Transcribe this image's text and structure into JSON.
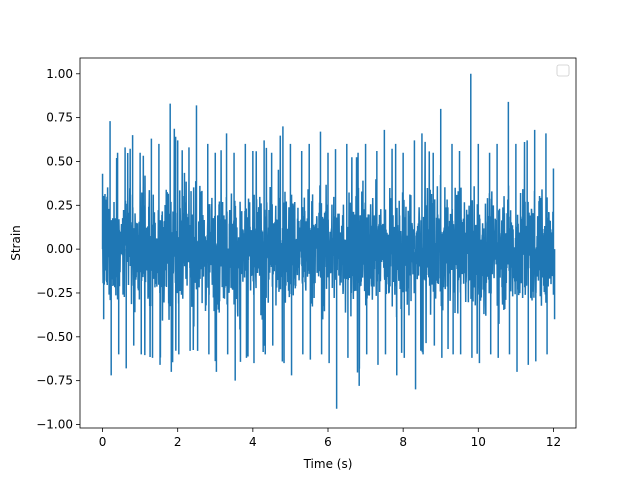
{
  "chart_data": {
    "type": "line",
    "title": "",
    "xlabel": "Time (s)",
    "ylabel": "Strain",
    "xlim": [
      -0.6,
      12.6
    ],
    "ylim": [
      -1.02,
      1.09
    ],
    "xticks": [
      0,
      2,
      4,
      6,
      8,
      10,
      12
    ],
    "xtick_labels": [
      "0",
      "2",
      "4",
      "6",
      "8",
      "10",
      "12"
    ],
    "yticks": [
      -1.0,
      -0.75,
      -0.5,
      -0.25,
      0.0,
      0.25,
      0.5,
      0.75,
      1.0
    ],
    "ytick_labels": [
      "−1.00",
      "−0.75",
      "−0.50",
      "−0.25",
      "0.00",
      "0.25",
      "0.50",
      "0.75",
      "1.00"
    ],
    "grid": false,
    "legend": {
      "placement": "upper-right",
      "entries": []
    },
    "color": "#1f77b4",
    "series": [
      {
        "x_range": [
          0,
          12
        ],
        "description_stats": {
          "mean": 0.0,
          "typical_band": [
            -0.4,
            0.45
          ]
        },
        "envelope": {
          "x": [
            0.0,
            0.2,
            0.4,
            0.6,
            0.8,
            1.0,
            1.3,
            1.5,
            1.8,
            2.0,
            2.3,
            2.5,
            2.8,
            3.0,
            3.3,
            3.5,
            3.8,
            4.0,
            4.3,
            4.5,
            4.8,
            5.0,
            5.3,
            5.5,
            5.8,
            6.0,
            6.2,
            6.5,
            6.8,
            7.0,
            7.3,
            7.5,
            7.8,
            8.0,
            8.3,
            8.5,
            8.8,
            9.0,
            9.3,
            9.5,
            9.8,
            10.0,
            10.3,
            10.5,
            10.8,
            11.0,
            11.3,
            11.5,
            11.8,
            12.0
          ],
          "upper": [
            0.43,
            0.73,
            0.55,
            0.58,
            0.65,
            0.55,
            0.63,
            0.6,
            0.83,
            0.62,
            0.58,
            0.82,
            0.6,
            0.55,
            0.66,
            0.55,
            0.6,
            0.56,
            0.62,
            0.55,
            0.7,
            0.6,
            0.56,
            0.6,
            0.67,
            0.55,
            0.57,
            0.6,
            0.55,
            0.6,
            0.56,
            0.68,
            0.6,
            0.55,
            0.62,
            0.66,
            0.55,
            0.8,
            0.6,
            0.56,
            1.0,
            0.6,
            0.55,
            0.6,
            0.84,
            0.6,
            0.62,
            0.68,
            0.66,
            0.46
          ],
          "lower": [
            -0.4,
            -0.72,
            -0.6,
            -0.68,
            -0.55,
            -0.6,
            -0.62,
            -0.66,
            -0.7,
            -0.6,
            -0.58,
            -0.58,
            -0.6,
            -0.7,
            -0.6,
            -0.75,
            -0.62,
            -0.65,
            -0.6,
            -0.55,
            -0.65,
            -0.72,
            -0.6,
            -0.63,
            -0.6,
            -0.65,
            -0.91,
            -0.62,
            -0.78,
            -0.6,
            -0.66,
            -0.6,
            -0.72,
            -0.62,
            -0.8,
            -0.6,
            -0.55,
            -0.62,
            -0.6,
            -0.6,
            -0.62,
            -0.65,
            -0.6,
            -0.62,
            -0.6,
            -0.7,
            -0.66,
            -0.64,
            -0.6,
            -0.4
          ]
        }
      }
    ]
  }
}
